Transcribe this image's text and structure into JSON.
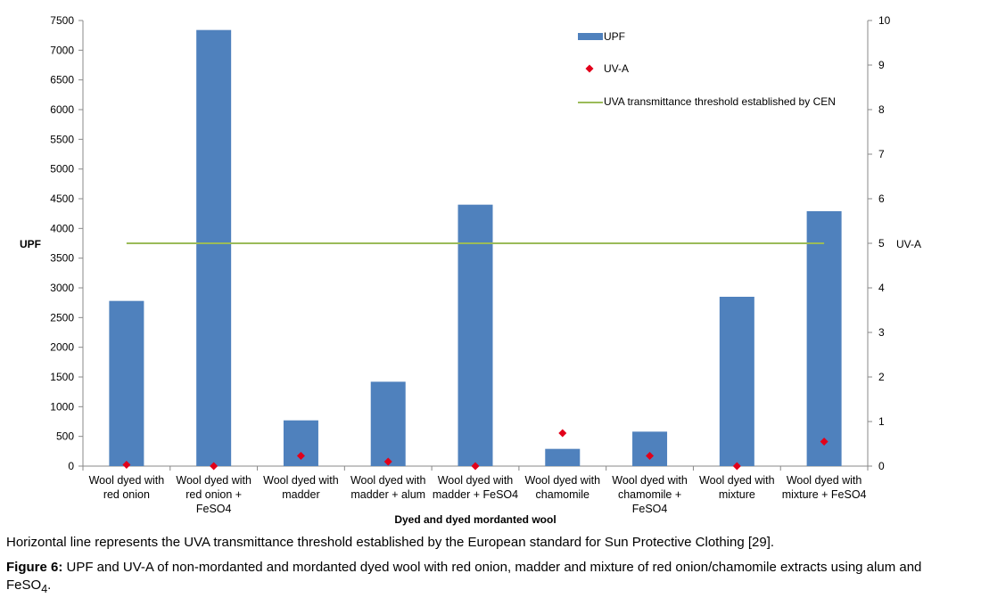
{
  "colors": {
    "bar": "#4f81bd",
    "marker": "#e2001a",
    "threshold": "#9bbb59",
    "axis": "#888888"
  },
  "chart_data": {
    "type": "bar",
    "categories": [
      [
        "Wool dyed with",
        "red onion"
      ],
      [
        "Wool dyed with",
        "red onion +",
        "FeSO4"
      ],
      [
        "Wool dyed with",
        "madder"
      ],
      [
        "Wool dyed with",
        "madder + alum"
      ],
      [
        "Wool dyed with",
        "madder + FeSO4"
      ],
      [
        "Wool dyed with",
        "chamomile"
      ],
      [
        "Wool dyed with",
        "chamomile +",
        "FeSO4"
      ],
      [
        "Wool dyed with",
        "mixture"
      ],
      [
        "Wool dyed with",
        "mixture + FeSO4"
      ]
    ],
    "series": [
      {
        "name": "UPF",
        "type": "bar",
        "axis": "left",
        "values": [
          2780,
          7340,
          770,
          1420,
          4400,
          290,
          580,
          2850,
          4290
        ]
      },
      {
        "name": "UV-A",
        "type": "scatter",
        "axis": "right",
        "values": [
          0.03,
          0.0,
          0.23,
          0.1,
          0.0,
          0.74,
          0.23,
          0.0,
          0.55
        ]
      },
      {
        "name": "UVA transmittance threshold established by CEN",
        "type": "line",
        "axis": "right",
        "value": 5
      }
    ],
    "xlabel": "Dyed and dyed mordanted wool",
    "ylabel": "UPF",
    "y2label": "UV-A",
    "ylim": [
      0,
      7500
    ],
    "ystep": 500,
    "y2lim": [
      0,
      10
    ],
    "y2step": 1,
    "grid": false,
    "legend": "top-right"
  },
  "note": "Horizontal line represents the UVA transmittance threshold established by the European standard for Sun Protective Clothing [29].",
  "caption": {
    "label": "Figure 6:",
    "text": "UPF and UV-A of non-mordanted and mordanted dyed wool with red onion, madder and mixture of red onion/chamomile extracts using alum and FeSO",
    "subscript": "4",
    "end": "."
  }
}
